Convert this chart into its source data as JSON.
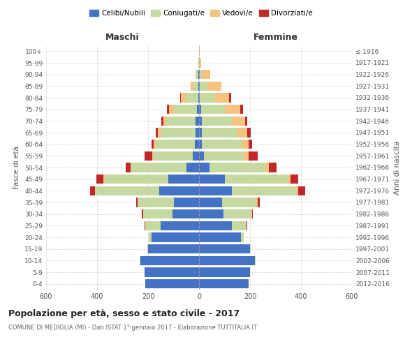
{
  "age_groups": [
    "0-4",
    "5-9",
    "10-14",
    "15-19",
    "20-24",
    "25-29",
    "30-34",
    "35-39",
    "40-44",
    "45-49",
    "50-54",
    "55-59",
    "60-64",
    "65-69",
    "70-74",
    "75-79",
    "80-84",
    "85-89",
    "90-94",
    "95-99",
    "100+"
  ],
  "birth_years": [
    "2012-2016",
    "2007-2011",
    "2002-2006",
    "1997-2001",
    "1992-1996",
    "1987-1991",
    "1982-1986",
    "1977-1981",
    "1972-1976",
    "1967-1971",
    "1962-1966",
    "1957-1961",
    "1952-1956",
    "1947-1951",
    "1942-1946",
    "1937-1941",
    "1932-1936",
    "1927-1931",
    "1922-1926",
    "1917-1921",
    "≤ 1916"
  ],
  "male": {
    "celibi": [
      210,
      215,
      230,
      200,
      185,
      150,
      105,
      100,
      155,
      120,
      50,
      24,
      16,
      14,
      14,
      8,
      4,
      2,
      2,
      0,
      0
    ],
    "coniugati": [
      0,
      0,
      2,
      2,
      12,
      60,
      115,
      140,
      250,
      250,
      215,
      155,
      155,
      135,
      115,
      90,
      48,
      22,
      8,
      2,
      0
    ],
    "vedovi": [
      0,
      0,
      0,
      0,
      0,
      0,
      0,
      0,
      4,
      4,
      4,
      4,
      6,
      12,
      10,
      20,
      18,
      8,
      4,
      0,
      0
    ],
    "divorziati": [
      0,
      0,
      0,
      0,
      0,
      4,
      4,
      6,
      18,
      30,
      18,
      30,
      10,
      10,
      8,
      8,
      4,
      0,
      0,
      0,
      0
    ]
  },
  "female": {
    "nubili": [
      195,
      200,
      220,
      200,
      165,
      130,
      95,
      90,
      130,
      100,
      40,
      20,
      12,
      10,
      10,
      8,
      4,
      2,
      2,
      0,
      0
    ],
    "coniugate": [
      0,
      0,
      2,
      2,
      10,
      55,
      110,
      135,
      250,
      250,
      220,
      155,
      155,
      140,
      120,
      95,
      60,
      30,
      12,
      2,
      0
    ],
    "vedove": [
      0,
      0,
      0,
      0,
      0,
      0,
      2,
      4,
      8,
      10,
      14,
      20,
      28,
      40,
      50,
      60,
      55,
      55,
      30,
      6,
      2
    ],
    "divorziate": [
      0,
      0,
      0,
      0,
      0,
      4,
      4,
      8,
      28,
      28,
      30,
      35,
      12,
      12,
      10,
      10,
      8,
      2,
      0,
      0,
      0
    ]
  },
  "colors": {
    "celibi": "#4472C4",
    "coniugati": "#C5D9A0",
    "vedovi": "#F5C27F",
    "divorziati": "#C0292A"
  },
  "title": "Popolazione per età, sesso e stato civile - 2017",
  "subtitle": "COMUNE DI MEDIGLIA (MI) - Dati ISTAT 1° gennaio 2017 - Elaborazione TUTTITALIA.IT",
  "xlabel_left": "Maschi",
  "xlabel_right": "Femmine",
  "ylabel_left": "Fasce di età",
  "ylabel_right": "Anni di nascita",
  "legend_labels": [
    "Celibi/Nubili",
    "Coniugati/e",
    "Vedovi/e",
    "Divorziati/e"
  ],
  "xlim": 600,
  "background_color": "#ffffff",
  "grid_color": "#cccccc"
}
